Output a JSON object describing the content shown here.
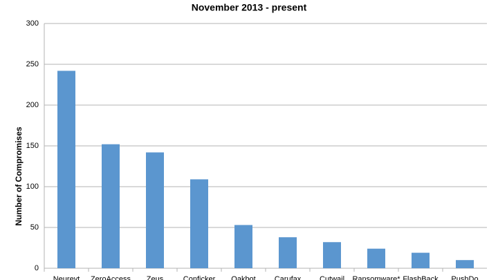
{
  "chart_data": {
    "type": "bar",
    "title": "November 2013 - present",
    "y_label": "Number of Compromises",
    "categories": [
      "Neurevt",
      "ZeroAccess",
      "Zeus",
      "Conficker",
      "Qakbot",
      "Carufax",
      "Cutwail",
      "Ransomware*",
      "FlashBack",
      "PushDo"
    ],
    "values": [
      242,
      152,
      142,
      109,
      53,
      38,
      32,
      24,
      19,
      10
    ],
    "color": "#5b96cf",
    "ylim": [
      0,
      300
    ],
    "yticks": [
      0,
      50,
      100,
      150,
      200,
      250,
      300
    ],
    "grid": true
  }
}
